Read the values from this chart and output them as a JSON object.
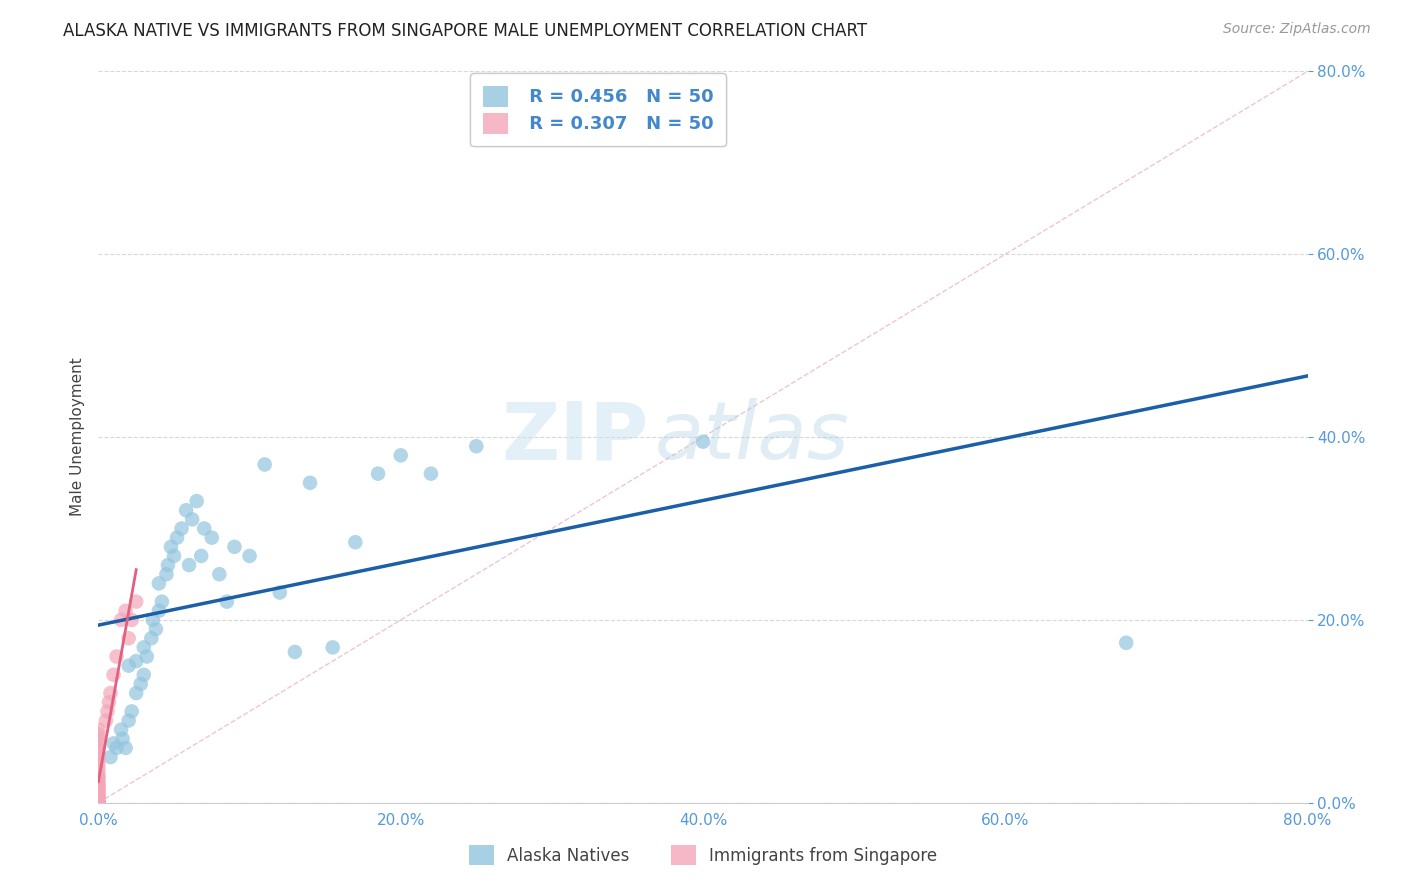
{
  "title": "ALASKA NATIVE VS IMMIGRANTS FROM SINGAPORE MALE UNEMPLOYMENT CORRELATION CHART",
  "source": "Source: ZipAtlas.com",
  "ylabel": "Male Unemployment",
  "xlim": [
    0,
    0.8
  ],
  "ylim": [
    0,
    0.8
  ],
  "xticks": [
    0.0,
    0.2,
    0.4,
    0.6,
    0.8
  ],
  "yticks": [
    0.0,
    0.2,
    0.4,
    0.6,
    0.8
  ],
  "background_color": "#ffffff",
  "grid_color": "#d8d8d8",
  "legend_R1": "R = 0.456",
  "legend_N1": "N = 50",
  "legend_R2": "R = 0.307",
  "legend_N2": "N = 50",
  "legend_color1": "#92c5de",
  "legend_color2": "#f4a6b8",
  "legend_label1": "Alaska Natives",
  "legend_label2": "Immigrants from Singapore",
  "alaska_x": [
    0.008,
    0.01,
    0.012,
    0.015,
    0.016,
    0.018,
    0.02,
    0.02,
    0.022,
    0.025,
    0.025,
    0.028,
    0.03,
    0.03,
    0.032,
    0.035,
    0.036,
    0.038,
    0.04,
    0.04,
    0.042,
    0.045,
    0.046,
    0.048,
    0.05,
    0.052,
    0.055,
    0.058,
    0.06,
    0.062,
    0.065,
    0.068,
    0.07,
    0.075,
    0.08,
    0.085,
    0.09,
    0.1,
    0.11,
    0.12,
    0.13,
    0.14,
    0.155,
    0.17,
    0.185,
    0.2,
    0.22,
    0.25,
    0.4,
    0.68
  ],
  "alaska_y": [
    0.05,
    0.065,
    0.06,
    0.08,
    0.07,
    0.06,
    0.09,
    0.15,
    0.1,
    0.12,
    0.155,
    0.13,
    0.14,
    0.17,
    0.16,
    0.18,
    0.2,
    0.19,
    0.21,
    0.24,
    0.22,
    0.25,
    0.26,
    0.28,
    0.27,
    0.29,
    0.3,
    0.32,
    0.26,
    0.31,
    0.33,
    0.27,
    0.3,
    0.29,
    0.25,
    0.22,
    0.28,
    0.27,
    0.37,
    0.23,
    0.165,
    0.35,
    0.17,
    0.285,
    0.36,
    0.38,
    0.36,
    0.39,
    0.395,
    0.175
  ],
  "singapore_x": [
    0.0,
    0.0,
    0.0,
    0.0,
    0.0,
    0.0,
    0.0,
    0.0,
    0.0,
    0.0,
    0.0,
    0.0,
    0.0,
    0.0,
    0.0,
    0.0,
    0.0,
    0.0,
    0.0,
    0.0,
    0.0,
    0.0,
    0.0,
    0.0,
    0.0,
    0.0,
    0.0,
    0.0,
    0.0,
    0.0,
    0.0,
    0.0,
    0.0,
    0.0,
    0.0,
    0.0,
    0.0,
    0.0,
    0.0,
    0.005,
    0.006,
    0.007,
    0.008,
    0.01,
    0.012,
    0.015,
    0.018,
    0.02,
    0.022,
    0.025
  ],
  "singapore_y": [
    0.0,
    0.0,
    0.0,
    0.0,
    0.0,
    0.0,
    0.0,
    0.0,
    0.0,
    0.0,
    0.0,
    0.0,
    0.0,
    0.0,
    0.0,
    0.005,
    0.006,
    0.007,
    0.008,
    0.01,
    0.012,
    0.014,
    0.016,
    0.018,
    0.02,
    0.022,
    0.025,
    0.028,
    0.03,
    0.035,
    0.04,
    0.045,
    0.05,
    0.055,
    0.06,
    0.065,
    0.07,
    0.075,
    0.08,
    0.09,
    0.1,
    0.11,
    0.12,
    0.14,
    0.16,
    0.2,
    0.21,
    0.18,
    0.2,
    0.22
  ],
  "alaska_line_color": "#1a5fa8",
  "singapore_line_color": "#e06080",
  "diagonal_color": "#d0d0d0",
  "watermark_zip": "ZIP",
  "watermark_atlas": "atlas",
  "watermark_color_zip": "#c5dff0",
  "watermark_color_atlas": "#a8cce0",
  "title_fontsize": 12,
  "axis_label_fontsize": 11,
  "tick_fontsize": 11,
  "source_fontsize": 10
}
